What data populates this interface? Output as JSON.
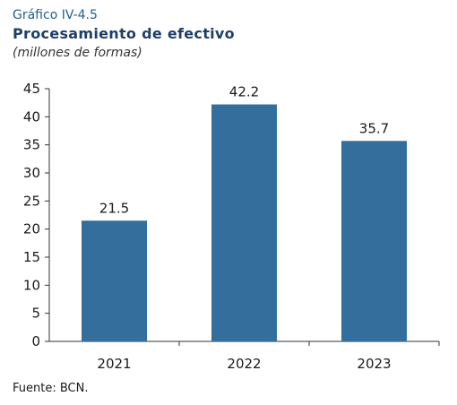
{
  "header": {
    "label": "Gráfico IV-4.5",
    "title": "Procesamiento de efectivo",
    "subtitle": "(millones de formas)"
  },
  "source": "Fuente: BCN.",
  "colors": {
    "bar": "#336e9c",
    "axis": "#333333"
  },
  "chart_data": {
    "type": "bar",
    "title": "Procesamiento de efectivo",
    "subtitle": "(millones de formas)",
    "categories": [
      "2021",
      "2022",
      "2023"
    ],
    "values": [
      21.5,
      42.2,
      35.7
    ],
    "data_labels": [
      "21.5",
      "42.2",
      "35.7"
    ],
    "xlabel": "",
    "ylabel": "",
    "ylim": [
      0,
      45
    ],
    "yticks": [
      0,
      5,
      10,
      15,
      20,
      25,
      30,
      35,
      40,
      45
    ],
    "grid": false,
    "legend": "none"
  }
}
